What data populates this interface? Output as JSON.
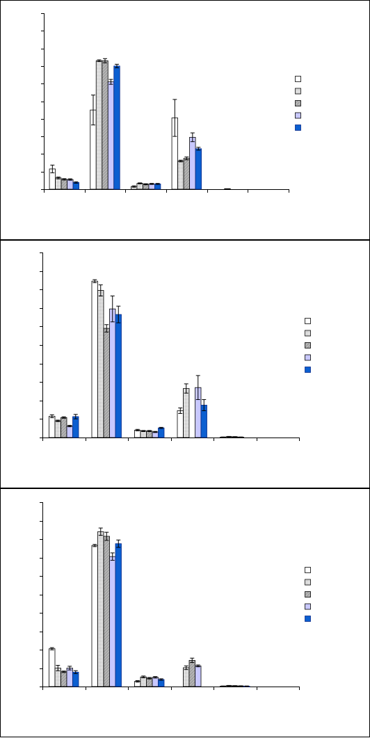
{
  "colors": {
    "frame": "#000000",
    "axis": "#000000",
    "errorbar": "#000000",
    "series_fills": [
      "#ffffff",
      "#e8e8e8",
      "#bdbdbd",
      "#c8c8ff",
      "#0c5fd0"
    ],
    "series_patterns": [
      "none",
      "fine-dots",
      "diagonal-hatch",
      "none",
      "none"
    ],
    "dark_series_stroke": "#0a2a8a"
  },
  "chart_data": [
    {
      "type": "bar",
      "title": "",
      "xlabel": "",
      "ylabel": "",
      "ylim": [
        0,
        10
      ],
      "y_major_ticks": 10,
      "groups": 6,
      "series_count": 5,
      "legend_placement": "right",
      "grid": false,
      "values": [
        [
          1.15,
          0.64,
          0.56,
          0.55,
          0.38
        ],
        [
          4.5,
          7.3,
          7.3,
          6.1,
          7.0
        ],
        [
          0.15,
          0.33,
          0.28,
          0.3,
          0.3
        ],
        [
          4.05,
          1.6,
          1.75,
          2.95,
          2.3
        ],
        [
          0,
          0,
          0.03,
          0,
          0
        ],
        [
          0,
          0,
          0,
          0,
          0
        ]
      ],
      "errors": [
        [
          0.22,
          0.05,
          0.04,
          0.04,
          0.04
        ],
        [
          0.85,
          0.05,
          0.12,
          0.14,
          0.1
        ],
        [
          0.04,
          0.03,
          0.03,
          0.03,
          0.03
        ],
        [
          1.05,
          0.05,
          0.08,
          0.25,
          0.08
        ],
        [
          0,
          0,
          0,
          0,
          0
        ],
        [
          0,
          0,
          0,
          0,
          0
        ]
      ]
    },
    {
      "type": "bar",
      "title": "",
      "xlabel": "",
      "ylabel": "",
      "ylim": [
        0,
        10
      ],
      "y_major_ticks": 10,
      "groups": 6,
      "series_count": 5,
      "legend_placement": "right",
      "grid": false,
      "values": [
        [
          1.15,
          0.9,
          1.08,
          0.62,
          1.13
        ],
        [
          8.45,
          7.95,
          5.9,
          6.95,
          6.65
        ],
        [
          0.4,
          0.35,
          0.35,
          0.3,
          0.52
        ],
        [
          1.45,
          2.65,
          0,
          2.7,
          1.75
        ],
        [
          0.02,
          0.05,
          0.04,
          0.02,
          0
        ],
        [
          0,
          0,
          0,
          0,
          0
        ]
      ],
      "errors": [
        [
          0.08,
          0.04,
          0.04,
          0.04,
          0.12
        ],
        [
          0.08,
          0.3,
          0.2,
          0.7,
          0.45
        ],
        [
          0.04,
          0.03,
          0.03,
          0.03,
          0.03
        ],
        [
          0.15,
          0.25,
          0,
          0.65,
          0.3
        ],
        [
          0.01,
          0.01,
          0.01,
          0.01,
          0
        ],
        [
          0,
          0,
          0,
          0,
          0
        ]
      ]
    },
    {
      "type": "bar",
      "title": "",
      "xlabel": "",
      "ylabel": "",
      "ylim": [
        0,
        10
      ],
      "y_major_ticks": 10,
      "groups": 6,
      "series_count": 5,
      "legend_placement": "right",
      "grid": false,
      "values": [
        [
          2.05,
          1.0,
          0.8,
          1.0,
          0.78
        ],
        [
          7.65,
          8.4,
          8.15,
          7.05,
          7.75
        ],
        [
          0.28,
          0.52,
          0.45,
          0.5,
          0.38
        ],
        [
          0,
          1.02,
          1.42,
          1.12,
          0
        ],
        [
          0.02,
          0.05,
          0.04,
          0.03,
          0.02
        ],
        [
          0,
          0,
          0,
          0,
          0
        ]
      ],
      "errors": [
        [
          0.06,
          0.15,
          0.04,
          0.1,
          0.08
        ],
        [
          0.06,
          0.2,
          0.22,
          0.2,
          0.2
        ],
        [
          0.04,
          0.05,
          0.04,
          0.04,
          0.04
        ],
        [
          0,
          0.1,
          0.12,
          0.05,
          0
        ],
        [
          0.01,
          0.01,
          0.01,
          0.01,
          0.01
        ],
        [
          0,
          0,
          0,
          0,
          0
        ]
      ]
    }
  ]
}
